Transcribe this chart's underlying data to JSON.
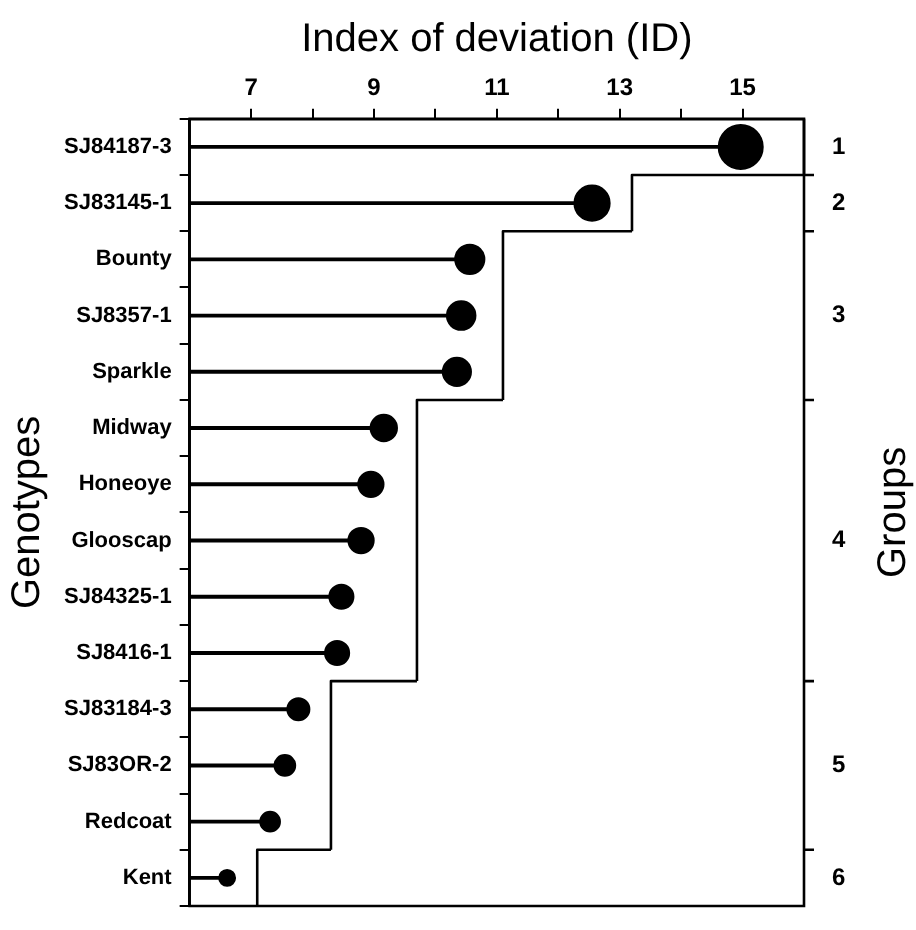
{
  "chart_data": {
    "type": "lollipop",
    "orientation": "horizontal",
    "xlabel": "Index of deviation (ID)",
    "ylabel": "Genotypes",
    "y2label": "Groups",
    "categories": [
      "SJ84187-3",
      "SJ83145-1",
      "Bounty",
      "SJ8357-1",
      "Sparkle",
      "Midway",
      "Honeoye",
      "Glooscap",
      "SJ84325-1",
      "SJ8416-1",
      "SJ83184-3",
      "SJ83OR-2",
      "Redcoat",
      "Kent"
    ],
    "series": [
      {
        "color": "#000000",
        "marker": "circle",
        "values": [
          14.97,
          12.55,
          10.56,
          10.42,
          10.35,
          9.16,
          8.95,
          8.79,
          8.47,
          8.4,
          7.77,
          7.55,
          7.31,
          6.61
        ],
        "sizes": [
          1,
          0.64,
          0.44,
          0.42,
          0.41,
          0.36,
          0.33,
          0.33,
          0.3,
          0.3,
          0.25,
          0.22,
          0.2,
          0.13
        ]
      },
      {
        "type": "step",
        "color": "#000000",
        "values": [
          16,
          13.2,
          11.1,
          11.1,
          11.1,
          9.7,
          9.7,
          9.7,
          9.7,
          9.7,
          8.3,
          8.3,
          8.3,
          7.1
        ]
      }
    ],
    "xlim": [
      6,
      16
    ],
    "xticks": [
      7,
      {
        "value": 8,
        "label": null
      },
      9,
      {
        "value": 10,
        "label": null
      },
      11,
      {
        "value": 12,
        "label": null
      },
      13,
      {
        "value": 14,
        "label": null
      },
      15
    ],
    "grid": false,
    "annotations": [
      "1",
      "2",
      "3",
      "4",
      "5",
      "6"
    ]
  }
}
